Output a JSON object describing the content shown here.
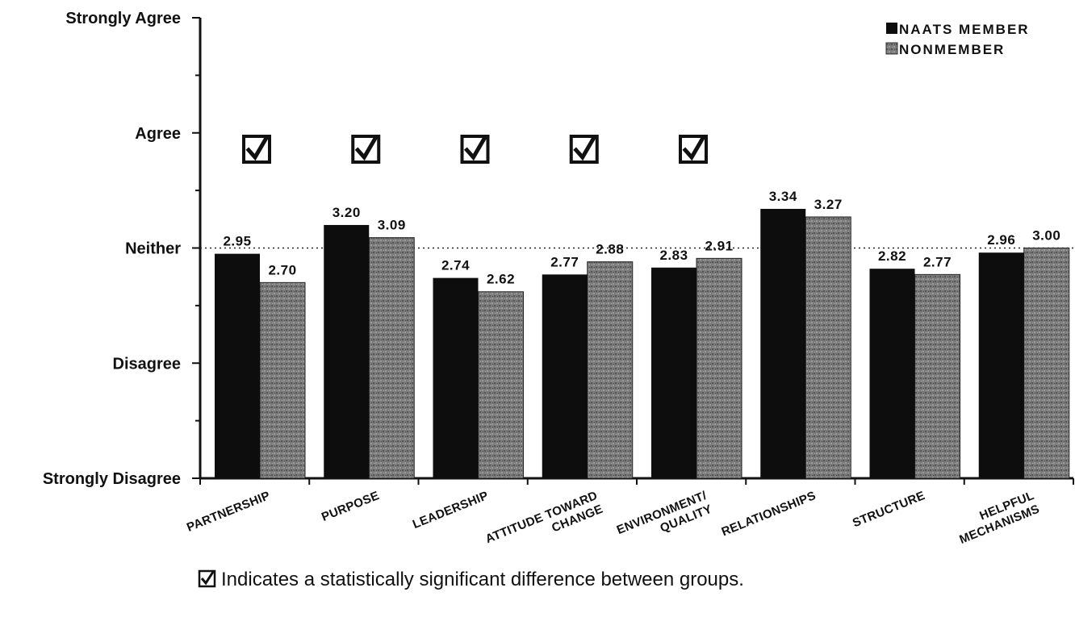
{
  "chart_data": {
    "type": "bar",
    "categories": [
      [
        "PARTNERSHIP"
      ],
      [
        "PURPOSE"
      ],
      [
        "LEADERSHIP"
      ],
      [
        "ATTITUDE TOWARD",
        "CHANGE"
      ],
      [
        "ENVIRONMENT/",
        "QUALITY"
      ],
      [
        "RELATIONSHIPS"
      ],
      [
        "STRUCTURE"
      ],
      [
        "HELPFUL",
        "MECHANISMS"
      ]
    ],
    "series": [
      {
        "name": "NAATS MEMBER",
        "values": [
          2.95,
          3.2,
          2.74,
          2.77,
          2.83,
          3.34,
          2.82,
          2.96
        ],
        "labels": [
          "2.95",
          "3.20",
          "2.74",
          "2.77",
          "2.83",
          "3.34",
          "2.82",
          "2.96"
        ],
        "color": "#0d0d0d"
      },
      {
        "name": "NONMEMBER",
        "values": [
          2.7,
          3.09,
          2.62,
          2.88,
          2.91,
          3.27,
          2.77,
          3.0
        ],
        "labels": [
          "2.70",
          "3.09",
          "2.62",
          "2.88",
          "2.91",
          "3.27",
          "2.77",
          "3.00"
        ],
        "color": "#6e6e6e"
      }
    ],
    "y_tick_labels": [
      "Strongly Disagree",
      "Disagree",
      "Neither",
      "Agree",
      "Strongly Agree"
    ],
    "y_tick_values": [
      1,
      2,
      3,
      4,
      5
    ],
    "ylim": [
      1,
      5
    ],
    "reference_line": 3,
    "significant": [
      true,
      true,
      true,
      true,
      true,
      false,
      false,
      false
    ],
    "legend_position": "top-right",
    "footnote": "Indicates a statistically significant difference between groups.",
    "footnote_icon": "checked-box-icon"
  }
}
